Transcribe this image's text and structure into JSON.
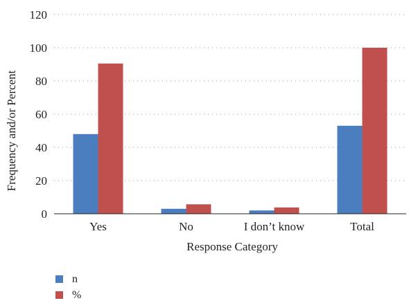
{
  "chart_data": {
    "type": "bar",
    "categories": [
      "Yes",
      "No",
      "I don’t know",
      "Total"
    ],
    "series": [
      {
        "name": "n",
        "values": [
          48,
          3,
          2,
          53
        ],
        "color": "#4a7ebf"
      },
      {
        "name": "%",
        "values": [
          90.5,
          5.7,
          3.8,
          100
        ],
        "color": "#c0504d"
      }
    ],
    "xlabel": "Response Category",
    "ylabel": "Frequency and/or Percent",
    "ylim": [
      0,
      120
    ],
    "yticks": [
      "0",
      "20",
      "40",
      "60",
      "80",
      "100",
      "120"
    ],
    "grid": true,
    "legend_position": "bottom-left"
  }
}
